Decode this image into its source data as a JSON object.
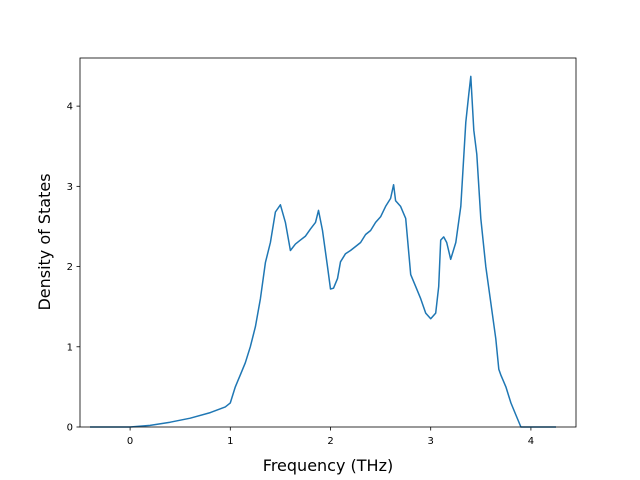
{
  "chart_data": {
    "type": "line",
    "title": "",
    "xlabel": "Frequency (THz)",
    "ylabel": "Density of States",
    "xlim": [
      -0.5,
      4.45
    ],
    "ylim": [
      0,
      4.6
    ],
    "xticks": [
      0,
      1,
      2,
      3,
      4
    ],
    "yticks": [
      0,
      1,
      2,
      3,
      4
    ],
    "grid": false,
    "legend": "none",
    "series": [
      {
        "color": "#1f77b4",
        "x": [
          -0.4,
          -0.2,
          0.0,
          0.2,
          0.4,
          0.6,
          0.8,
          0.95,
          1.0,
          1.05,
          1.1,
          1.15,
          1.2,
          1.25,
          1.3,
          1.35,
          1.4,
          1.45,
          1.5,
          1.55,
          1.6,
          1.65,
          1.7,
          1.75,
          1.8,
          1.85,
          1.88,
          1.92,
          1.97,
          2.0,
          2.03,
          2.07,
          2.1,
          2.15,
          2.2,
          2.25,
          2.3,
          2.35,
          2.4,
          2.45,
          2.5,
          2.55,
          2.6,
          2.63,
          2.65,
          2.7,
          2.75,
          2.8,
          2.85,
          2.9,
          2.95,
          3.0,
          3.05,
          3.08,
          3.1,
          3.13,
          3.16,
          3.2,
          3.25,
          3.3,
          3.35,
          3.38,
          3.4,
          3.43,
          3.46,
          3.5,
          3.55,
          3.6,
          3.65,
          3.68,
          3.7,
          3.75,
          3.8,
          3.85,
          3.9,
          4.0,
          4.1,
          4.25
        ],
        "y": [
          0.0,
          0.0,
          0.0,
          0.02,
          0.06,
          0.11,
          0.18,
          0.25,
          0.3,
          0.5,
          0.65,
          0.8,
          1.0,
          1.25,
          1.6,
          2.05,
          2.3,
          2.68,
          2.77,
          2.55,
          2.2,
          2.28,
          2.33,
          2.38,
          2.47,
          2.55,
          2.7,
          2.45,
          2.0,
          1.72,
          1.73,
          1.85,
          2.06,
          2.16,
          2.2,
          2.25,
          2.3,
          2.4,
          2.45,
          2.55,
          2.62,
          2.75,
          2.85,
          3.02,
          2.82,
          2.75,
          2.6,
          1.9,
          1.75,
          1.6,
          1.42,
          1.35,
          1.42,
          1.75,
          2.33,
          2.37,
          2.3,
          2.09,
          2.3,
          2.75,
          3.8,
          4.15,
          4.37,
          3.7,
          3.4,
          2.6,
          2.0,
          1.55,
          1.1,
          0.72,
          0.65,
          0.5,
          0.3,
          0.15,
          0.0,
          0.0,
          0.0,
          0.0
        ]
      }
    ]
  }
}
